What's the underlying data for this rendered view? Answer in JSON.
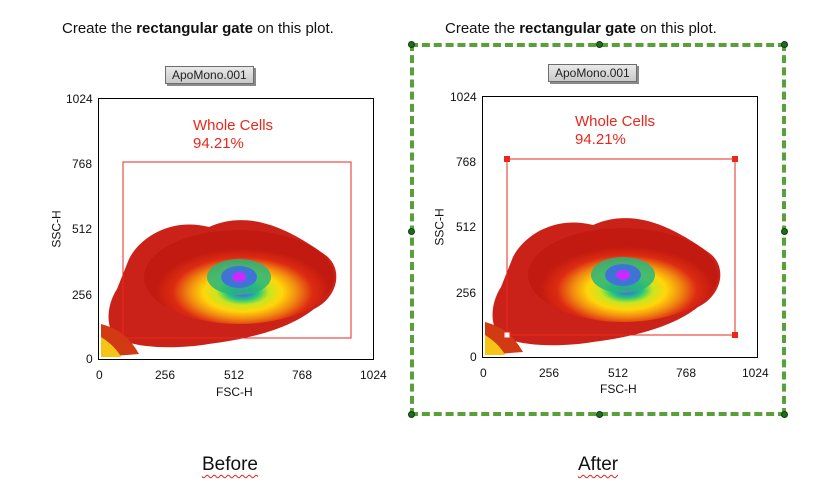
{
  "instruction": {
    "prefix": "Create the ",
    "bold": "rectangular gate",
    "suffix": " on this plot."
  },
  "plot_label": "ApoMono.001",
  "axes": {
    "x_title": "FSC-H",
    "y_title": "SSC-H",
    "x_ticks": [
      "0",
      "256",
      "512",
      "768",
      "1024"
    ],
    "y_ticks": [
      "1024",
      "768",
      "512",
      "256",
      "0"
    ]
  },
  "gate": {
    "name": "Whole Cells",
    "percent": "94.21%"
  },
  "captions": {
    "before": "Before",
    "after": "After"
  },
  "colors": {
    "gate": "#e8281c",
    "selection": "#5aa03a",
    "handle": "#1f6b1f"
  }
}
